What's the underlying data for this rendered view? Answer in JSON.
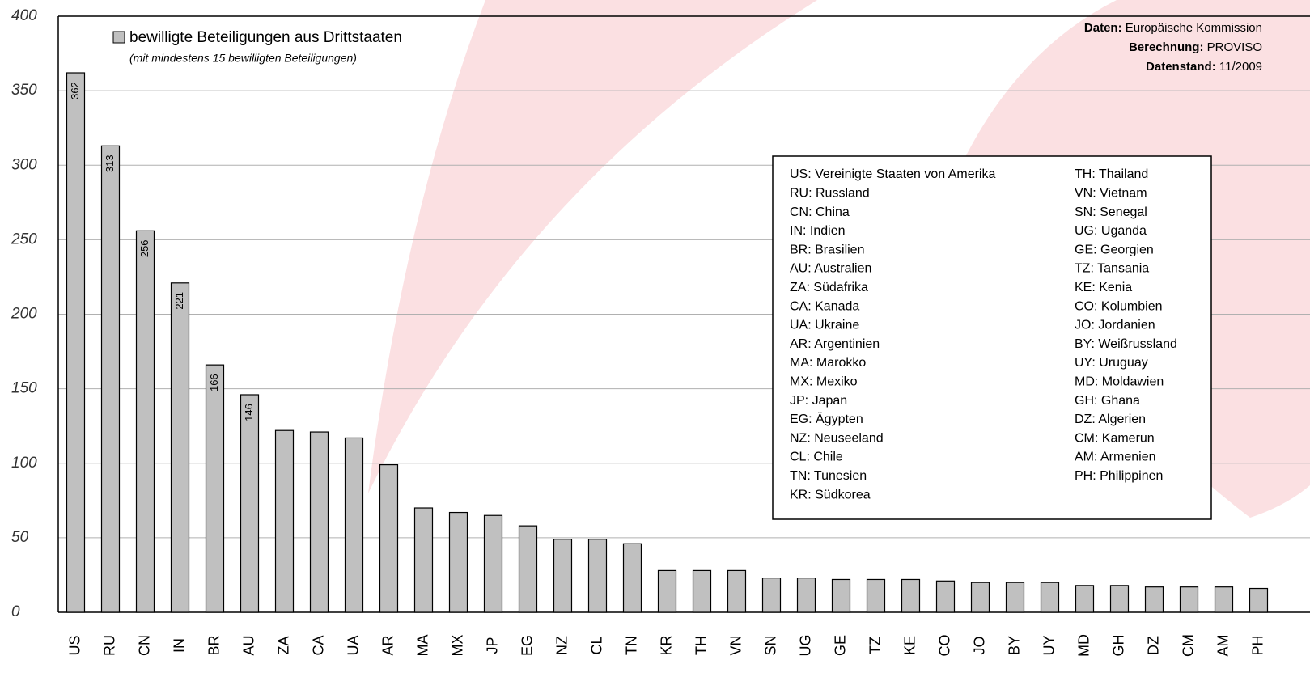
{
  "chart_data": {
    "type": "bar",
    "legend_label": "bewilligte Beteiligungen aus Drittstaaten",
    "note": "(mit mindestens 15 bewilligten Beteiligungen)",
    "source": [
      {
        "label": "Daten:",
        "text": "Europäische Kommission"
      },
      {
        "label": "Berechnung:",
        "text": "PROVISO"
      },
      {
        "label": "Datenstand:",
        "text": "11/2009"
      }
    ],
    "key": [
      [
        "US: Vereinigte Staaten von Amerika",
        "RU: Russland",
        "CN: China",
        "IN: Indien",
        "BR: Brasilien",
        "AU: Australien",
        "ZA: Südafrika",
        "CA: Kanada",
        "UA: Ukraine",
        "AR: Argentinien",
        "MA: Marokko",
        "MX: Mexiko",
        "JP: Japan",
        "EG: Ägypten",
        "NZ: Neuseeland",
        "CL: Chile",
        "TN: Tunesien",
        "KR: Südkorea"
      ],
      [
        "TH: Thailand",
        "VN: Vietnam",
        "SN: Senegal",
        "UG: Uganda",
        "GE: Georgien",
        "TZ: Tansania",
        "KE: Kenia",
        "CO: Kolumbien",
        "JO: Jordanien",
        "BY: Weißrussland",
        "UY: Uruguay",
        "MD: Moldawien",
        "GH: Ghana",
        "DZ: Algerien",
        "CM: Kamerun",
        "AM: Armenien",
        "PH: Philippinen"
      ]
    ],
    "categories": [
      "US",
      "RU",
      "CN",
      "IN",
      "BR",
      "AU",
      "ZA",
      "CA",
      "UA",
      "AR",
      "MA",
      "MX",
      "JP",
      "EG",
      "NZ",
      "CL",
      "TN",
      "KR",
      "TH",
      "VN",
      "SN",
      "UG",
      "GE",
      "TZ",
      "KE",
      "CO",
      "JO",
      "BY",
      "UY",
      "MD",
      "GH",
      "DZ",
      "CM",
      "AM",
      "PH"
    ],
    "values": [
      362,
      313,
      256,
      221,
      166,
      146,
      122,
      121,
      117,
      99,
      70,
      67,
      65,
      58,
      49,
      49,
      46,
      28,
      28,
      28,
      23,
      23,
      22,
      22,
      22,
      21,
      20,
      20,
      20,
      18,
      18,
      17,
      17,
      17,
      16
    ],
    "value_labels": [
      "362",
      "313",
      "256",
      "221",
      "166",
      "146",
      null,
      null,
      null,
      null,
      null,
      null,
      null,
      null,
      null,
      null,
      null,
      null,
      null,
      null,
      null,
      null,
      null,
      null,
      null,
      null,
      null,
      null,
      null,
      null,
      null,
      null,
      null,
      null,
      null
    ],
    "color": "#c0c0c0",
    "ylim": [
      0,
      400
    ],
    "yticks": [
      0,
      50,
      100,
      150,
      200,
      250,
      300,
      350,
      400
    ],
    "grid": true
  }
}
